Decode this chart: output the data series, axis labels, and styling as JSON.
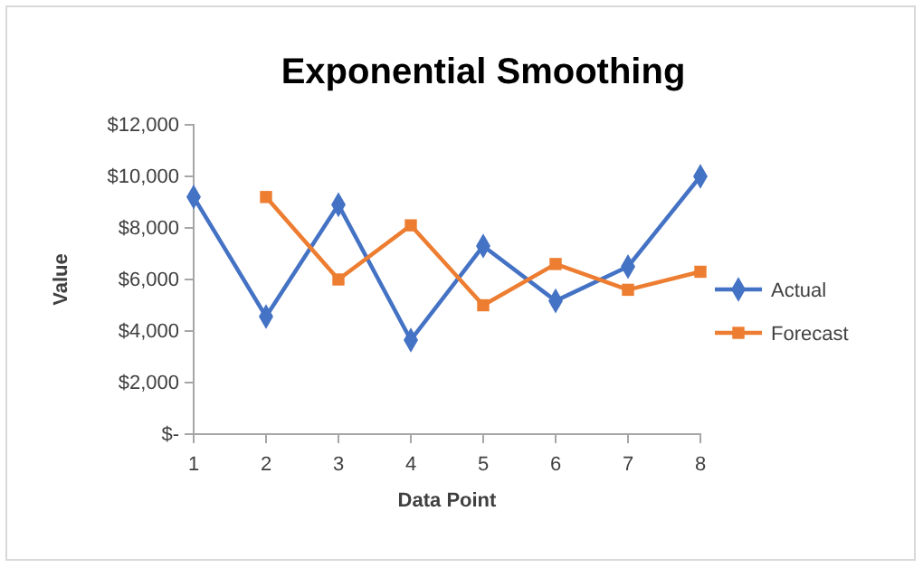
{
  "chart_data": {
    "type": "line",
    "title": "Exponential Smoothing",
    "xlabel": "Data Point",
    "ylabel": "Value",
    "x": [
      1,
      2,
      3,
      4,
      5,
      6,
      7,
      8
    ],
    "series": [
      {
        "name": "Actual",
        "color": "#4472c4",
        "marker": "diamond",
        "values": [
          9200,
          4560,
          8900,
          3650,
          7300,
          5170,
          6500,
          10000
        ]
      },
      {
        "name": "Forecast",
        "color": "#ed7d31",
        "marker": "square",
        "values": [
          null,
          9200,
          6000,
          8100,
          5000,
          6600,
          5600,
          6300
        ]
      }
    ],
    "xlim": [
      1,
      8
    ],
    "xticks": [
      1,
      2,
      3,
      4,
      5,
      6,
      7,
      8
    ],
    "ylim": [
      0,
      12000
    ],
    "yticks": [
      {
        "value": 0,
        "label": "$-"
      },
      {
        "value": 2000,
        "label": "$2,000"
      },
      {
        "value": 4000,
        "label": "$4,000"
      },
      {
        "value": 6000,
        "label": "$6,000"
      },
      {
        "value": 8000,
        "label": "$8,000"
      },
      {
        "value": 10000,
        "label": "$10,000"
      },
      {
        "value": 12000,
        "label": "$12,000"
      }
    ],
    "grid": false,
    "legend": "right",
    "line_style": "solid"
  }
}
